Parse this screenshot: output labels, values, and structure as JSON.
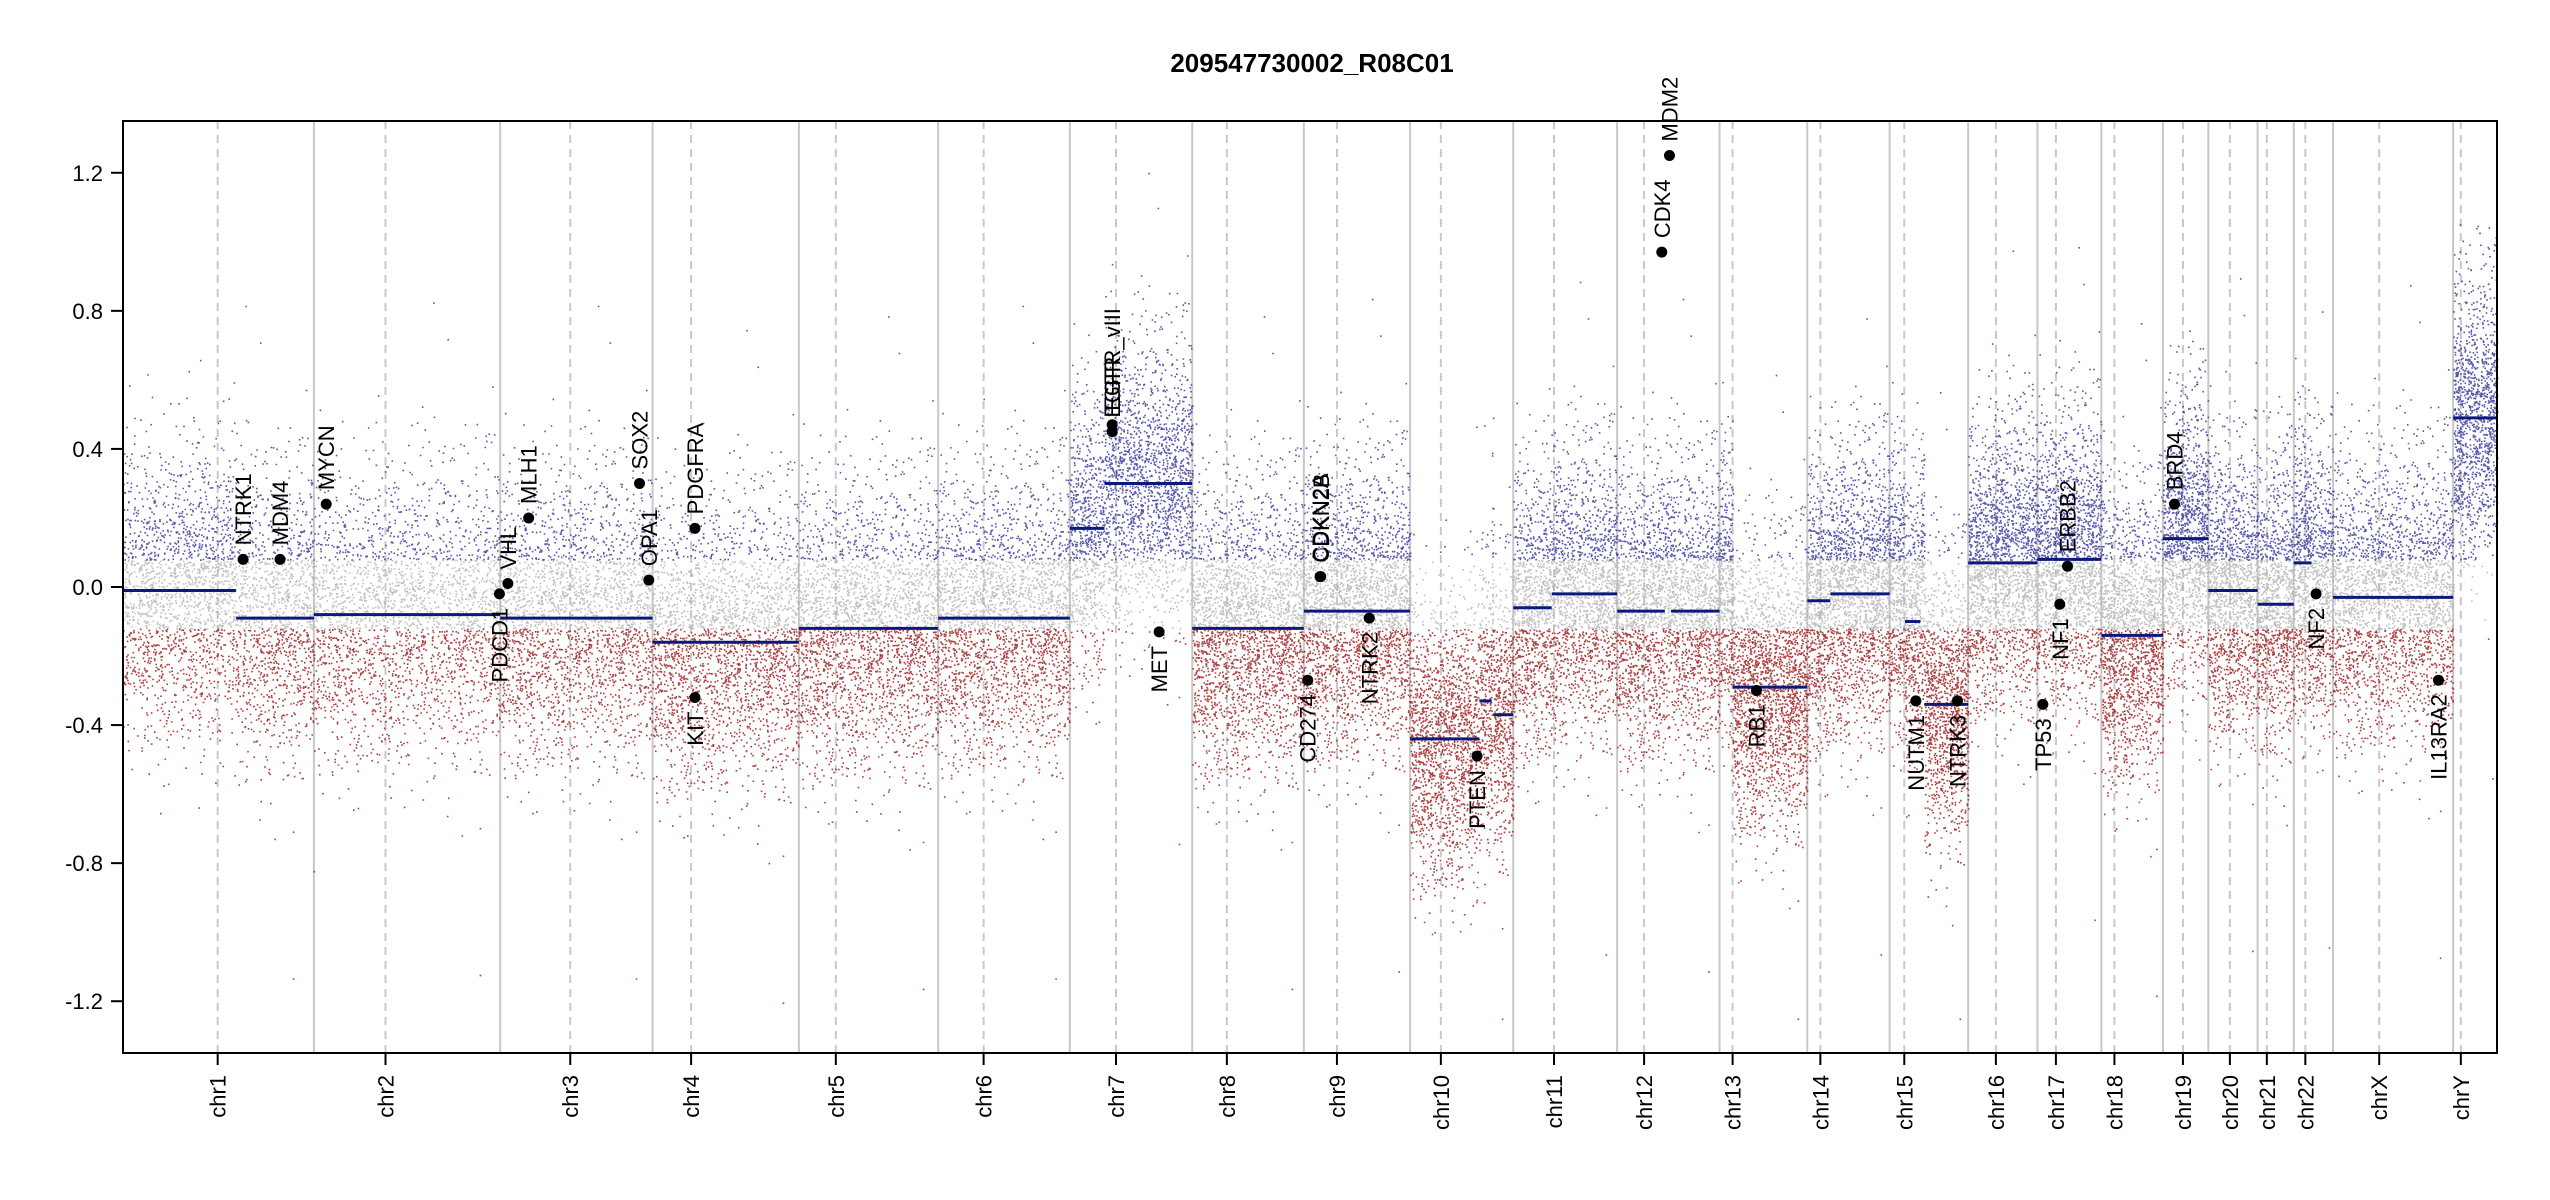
{
  "chart_data": {
    "type": "scatter",
    "title": "209547730002_R08C01",
    "xlabel": "",
    "ylabel": "",
    "ylim": [
      -1.35,
      1.35
    ],
    "yticks": [
      "1.2",
      "0.8",
      "0.4",
      "0.0",
      "-0.4",
      "-0.8",
      "-1.2"
    ],
    "ytick_values": [
      1.2,
      0.8,
      0.4,
      0.0,
      -0.4,
      -0.8,
      -1.2
    ],
    "grid": false,
    "colors": {
      "gain": "#3a3a9e",
      "loss": "#9e1f1f",
      "neutral": "#b0b0b0",
      "segment": "#0b1a7a",
      "gene": "#000000",
      "boundary": "#c8c8c8"
    },
    "chromosomes": [
      {
        "name": "chr1",
        "length": 248,
        "centromere": 123
      },
      {
        "name": "chr2",
        "length": 242,
        "centromere": 93
      },
      {
        "name": "chr3",
        "length": 198,
        "centromere": 91
      },
      {
        "name": "chr4",
        "length": 190,
        "centromere": 50
      },
      {
        "name": "chr5",
        "length": 181,
        "centromere": 48
      },
      {
        "name": "chr6",
        "length": 171,
        "centromere": 59
      },
      {
        "name": "chr7",
        "length": 159,
        "centromere": 60
      },
      {
        "name": "chr8",
        "length": 145,
        "centromere": 45
      },
      {
        "name": "chr9",
        "length": 138,
        "centromere": 43
      },
      {
        "name": "chr10",
        "length": 134,
        "centromere": 40
      },
      {
        "name": "chr11",
        "length": 135,
        "centromere": 53
      },
      {
        "name": "chr12",
        "length": 133,
        "centromere": 35
      },
      {
        "name": "chr13",
        "length": 114,
        "centromere": 17
      },
      {
        "name": "chr14",
        "length": 107,
        "centromere": 17
      },
      {
        "name": "chr15",
        "length": 102,
        "centromere": 19
      },
      {
        "name": "chr16",
        "length": 90,
        "centromere": 36
      },
      {
        "name": "chr17",
        "length": 83,
        "centromere": 24
      },
      {
        "name": "chr18",
        "length": 80,
        "centromere": 17
      },
      {
        "name": "chr19",
        "length": 59,
        "centromere": 26
      },
      {
        "name": "chr20",
        "length": 64,
        "centromere": 28
      },
      {
        "name": "chr21",
        "length": 47,
        "centromere": 12
      },
      {
        "name": "chr22",
        "length": 51,
        "centromere": 15
      },
      {
        "name": "chrX",
        "length": 156,
        "centromere": 60
      },
      {
        "name": "chrY",
        "length": 57,
        "centromere": 10
      }
    ],
    "segments": [
      {
        "chr": "chr1",
        "start": 0,
        "end": 147,
        "value": -0.01
      },
      {
        "chr": "chr1",
        "start": 147,
        "end": 248,
        "value": -0.09
      },
      {
        "chr": "chr2",
        "start": 0,
        "end": 242,
        "value": -0.08
      },
      {
        "chr": "chr3",
        "start": 0,
        "end": 198,
        "value": -0.09
      },
      {
        "chr": "chr4",
        "start": 0,
        "end": 190,
        "value": -0.16
      },
      {
        "chr": "chr5",
        "start": 0,
        "end": 181,
        "value": -0.12
      },
      {
        "chr": "chr6",
        "start": 0,
        "end": 171,
        "value": -0.09
      },
      {
        "chr": "chr7",
        "start": 0,
        "end": 45,
        "value": 0.17
      },
      {
        "chr": "chr7",
        "start": 45,
        "end": 159,
        "value": 0.3
      },
      {
        "chr": "chr8",
        "start": 0,
        "end": 145,
        "value": -0.12
      },
      {
        "chr": "chr9",
        "start": 0,
        "end": 138,
        "value": -0.07
      },
      {
        "chr": "chr10",
        "start": 0,
        "end": 90,
        "value": -0.44
      },
      {
        "chr": "chr10",
        "start": 90,
        "end": 106,
        "value": -0.33
      },
      {
        "chr": "chr10",
        "start": 108,
        "end": 134,
        "value": -0.37
      },
      {
        "chr": "chr11",
        "start": 0,
        "end": 50,
        "value": -0.06
      },
      {
        "chr": "chr11",
        "start": 50,
        "end": 135,
        "value": -0.02
      },
      {
        "chr": "chr12",
        "start": 0,
        "end": 62,
        "value": -0.07
      },
      {
        "chr": "chr12",
        "start": 70,
        "end": 133,
        "value": -0.07
      },
      {
        "chr": "chr13",
        "start": 17,
        "end": 114,
        "value": -0.29
      },
      {
        "chr": "chr14",
        "start": 0,
        "end": 30,
        "value": -0.04
      },
      {
        "chr": "chr14",
        "start": 30,
        "end": 107,
        "value": -0.02
      },
      {
        "chr": "chr15",
        "start": 20,
        "end": 40,
        "value": -0.1
      },
      {
        "chr": "chr15",
        "start": 45,
        "end": 102,
        "value": -0.34
      },
      {
        "chr": "chr16",
        "start": 0,
        "end": 90,
        "value": 0.07
      },
      {
        "chr": "chr17",
        "start": 0,
        "end": 83,
        "value": 0.08
      },
      {
        "chr": "chr18",
        "start": 0,
        "end": 80,
        "value": -0.14
      },
      {
        "chr": "chr19",
        "start": 0,
        "end": 59,
        "value": 0.14
      },
      {
        "chr": "chr20",
        "start": 0,
        "end": 64,
        "value": -0.01
      },
      {
        "chr": "chr21",
        "start": 0,
        "end": 47,
        "value": -0.05
      },
      {
        "chr": "chr22",
        "start": 0,
        "end": 23,
        "value": 0.07
      },
      {
        "chr": "chrX",
        "start": 0,
        "end": 156,
        "value": -0.03
      },
      {
        "chr": "chrY",
        "start": 0,
        "end": 57,
        "value": 0.49
      }
    ],
    "genes": [
      {
        "name": "NTRK1",
        "chr": "chr1",
        "pos": 156,
        "value": 0.08
      },
      {
        "name": "MDM4",
        "chr": "chr1",
        "pos": 204,
        "value": 0.08
      },
      {
        "name": "MYCN",
        "chr": "chr2",
        "pos": 16,
        "value": 0.24
      },
      {
        "name": "PDCD1",
        "chr": "chr2",
        "pos": 241,
        "value": -0.02
      },
      {
        "name": "VHL",
        "chr": "chr3",
        "pos": 10,
        "value": 0.01
      },
      {
        "name": "MLH1",
        "chr": "chr3",
        "pos": 37,
        "value": 0.2
      },
      {
        "name": "SOX2",
        "chr": "chr3",
        "pos": 181,
        "value": 0.3
      },
      {
        "name": "OPA1",
        "chr": "chr3",
        "pos": 193,
        "value": 0.02
      },
      {
        "name": "PDGFRA",
        "chr": "chr4",
        "pos": 55,
        "value": 0.17
      },
      {
        "name": "KIT",
        "chr": "chr4",
        "pos": 55,
        "value": -0.32
      },
      {
        "name": "EGFR_vIII",
        "chr": "chr7",
        "pos": 55,
        "value": 0.47
      },
      {
        "name": "EGFR",
        "chr": "chr7",
        "pos": 55,
        "value": 0.45
      },
      {
        "name": "MET",
        "chr": "chr7",
        "pos": 116,
        "value": -0.13
      },
      {
        "name": "CD274",
        "chr": "chr9",
        "pos": 5,
        "value": -0.27
      },
      {
        "name": "CDKN2A",
        "chr": "chr9",
        "pos": 21,
        "value": 0.03
      },
      {
        "name": "CDKN2B",
        "chr": "chr9",
        "pos": 22,
        "value": 0.03
      },
      {
        "name": "NTRK2",
        "chr": "chr9",
        "pos": 85,
        "value": -0.09
      },
      {
        "name": "PTEN",
        "chr": "chr10",
        "pos": 87,
        "value": -0.49
      },
      {
        "name": "CDK4",
        "chr": "chr12",
        "pos": 58,
        "value": 0.97
      },
      {
        "name": "MDM2",
        "chr": "chr12",
        "pos": 68,
        "value": 1.25
      },
      {
        "name": "RB1",
        "chr": "chr13",
        "pos": 48,
        "value": -0.3
      },
      {
        "name": "NUTM1",
        "chr": "chr15",
        "pos": 34,
        "value": -0.33
      },
      {
        "name": "NTRK3",
        "chr": "chr15",
        "pos": 88,
        "value": -0.33
      },
      {
        "name": "TP53",
        "chr": "chr17",
        "pos": 7,
        "value": -0.34
      },
      {
        "name": "NF1",
        "chr": "chr17",
        "pos": 29,
        "value": -0.05
      },
      {
        "name": "ERBB2",
        "chr": "chr17",
        "pos": 39,
        "value": 0.06
      },
      {
        "name": "BRD4",
        "chr": "chr19",
        "pos": 15,
        "value": 0.24
      },
      {
        "name": "NF2",
        "chr": "chr22",
        "pos": 29,
        "value": -0.02
      },
      {
        "name": "IL13RA2",
        "chr": "chrX",
        "pos": 137,
        "value": -0.27
      }
    ]
  }
}
